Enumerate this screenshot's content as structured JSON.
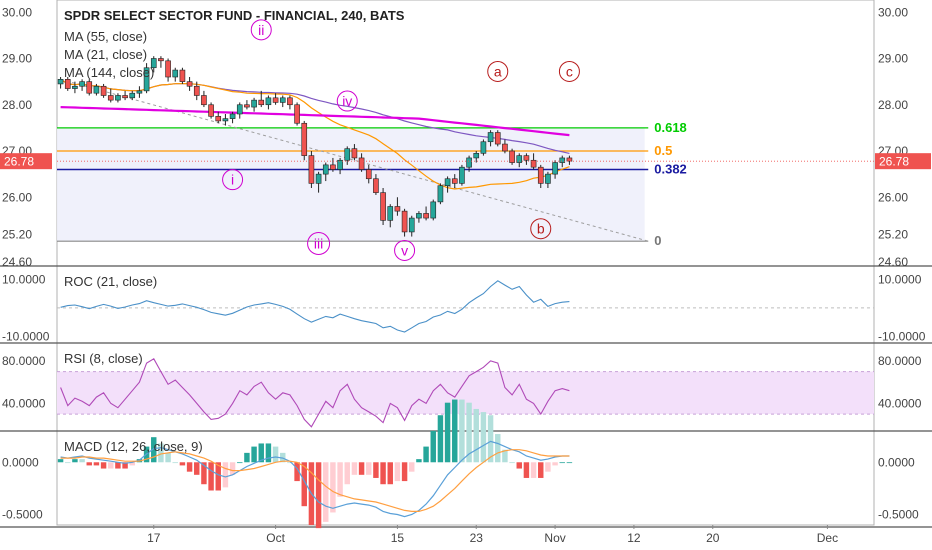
{
  "chart_data": [
    {
      "type": "candlestick",
      "title": "SPDR SELECT SECTOR FUND - FINANCIAL, 240, BATS",
      "price_label": "26.78",
      "price": 26.78,
      "ylim": [
        24.6,
        30.2
      ],
      "y_ticks": [
        "30.00",
        "29.00",
        "28.00",
        "27.00",
        "26.00",
        "25.20",
        "24.60"
      ],
      "y_tick_values": [
        30.0,
        29.0,
        28.0,
        27.0,
        26.0,
        25.2,
        24.6
      ],
      "indicators": [
        "MA (55, close)",
        "MA (21, close)",
        "MA (144, close)"
      ],
      "fib_levels": [
        {
          "label": "0.618",
          "value": 27.5,
          "color": "#00cc00"
        },
        {
          "label": "0.5",
          "value": 27.0,
          "color": "#ff9800"
        },
        {
          "label": "0.382",
          "value": 26.6,
          "color": "#1a1aa0"
        },
        {
          "label": "0",
          "value": 25.05,
          "color": "#888888"
        }
      ],
      "wave_labels": [
        {
          "label": "i",
          "x": 24,
          "y": 26.38
        },
        {
          "label": "ii",
          "x": 28,
          "y": 29.62
        },
        {
          "label": "iii",
          "x": 36,
          "y": 25.0
        },
        {
          "label": "iv",
          "x": 40,
          "y": 28.08
        },
        {
          "label": "v",
          "x": 48,
          "y": 24.85
        },
        {
          "label": "a",
          "x": 61,
          "y": 28.72
        },
        {
          "label": "b",
          "x": 67,
          "y": 25.32
        },
        {
          "label": "c",
          "x": 71,
          "y": 28.72
        }
      ],
      "candles": [
        [
          28.45,
          28.6,
          28.35,
          28.55
        ],
        [
          28.55,
          28.6,
          28.3,
          28.35
        ],
        [
          28.35,
          28.5,
          28.25,
          28.4
        ],
        [
          28.4,
          28.55,
          28.3,
          28.5
        ],
        [
          28.5,
          28.55,
          28.2,
          28.25
        ],
        [
          28.25,
          28.45,
          28.2,
          28.4
        ],
        [
          28.4,
          28.45,
          28.15,
          28.2
        ],
        [
          28.2,
          28.35,
          28.05,
          28.1
        ],
        [
          28.1,
          28.25,
          28.05,
          28.2
        ],
        [
          28.2,
          28.3,
          28.1,
          28.15
        ],
        [
          28.15,
          28.3,
          28.1,
          28.25
        ],
        [
          28.25,
          28.4,
          28.15,
          28.3
        ],
        [
          28.3,
          28.9,
          28.25,
          28.8
        ],
        [
          28.8,
          29.05,
          28.7,
          29.0
        ],
        [
          29.0,
          29.05,
          28.8,
          28.95
        ],
        [
          28.95,
          29.0,
          28.5,
          28.6
        ],
        [
          28.6,
          28.8,
          28.5,
          28.75
        ],
        [
          28.75,
          28.8,
          28.45,
          28.5
        ],
        [
          28.5,
          28.6,
          28.3,
          28.4
        ],
        [
          28.4,
          28.5,
          28.1,
          28.2
        ],
        [
          28.2,
          28.3,
          27.95,
          28.0
        ],
        [
          28.0,
          28.05,
          27.7,
          27.75
        ],
        [
          27.75,
          27.85,
          27.6,
          27.65
        ],
        [
          27.65,
          27.8,
          27.55,
          27.7
        ],
        [
          27.7,
          27.85,
          27.6,
          27.8
        ],
        [
          27.8,
          28.05,
          27.7,
          28.0
        ],
        [
          28.0,
          28.1,
          27.9,
          27.95
        ],
        [
          27.95,
          28.15,
          27.85,
          28.1
        ],
        [
          28.1,
          28.3,
          27.95,
          28.0
        ],
        [
          28.0,
          28.2,
          27.9,
          28.15
        ],
        [
          28.15,
          28.25,
          28.0,
          28.05
        ],
        [
          28.05,
          28.2,
          27.95,
          28.15
        ],
        [
          28.15,
          28.2,
          27.9,
          28.0
        ],
        [
          28.0,
          28.05,
          27.55,
          27.6
        ],
        [
          27.6,
          27.65,
          26.8,
          26.9
        ],
        [
          26.9,
          27.0,
          26.2,
          26.3
        ],
        [
          26.3,
          26.55,
          26.1,
          26.5
        ],
        [
          26.5,
          26.75,
          26.35,
          26.7
        ],
        [
          26.7,
          26.85,
          26.55,
          26.6
        ],
        [
          26.6,
          26.85,
          26.5,
          26.8
        ],
        [
          26.8,
          27.1,
          26.7,
          27.05
        ],
        [
          27.05,
          27.15,
          26.8,
          26.85
        ],
        [
          26.85,
          26.95,
          26.55,
          26.6
        ],
        [
          26.6,
          26.7,
          26.3,
          26.4
        ],
        [
          26.4,
          26.5,
          26.05,
          26.1
        ],
        [
          26.1,
          26.2,
          25.4,
          25.5
        ],
        [
          25.5,
          25.85,
          25.35,
          25.8
        ],
        [
          25.8,
          26.0,
          25.6,
          25.7
        ],
        [
          25.7,
          25.75,
          25.15,
          25.25
        ],
        [
          25.25,
          25.6,
          25.15,
          25.55
        ],
        [
          25.55,
          25.7,
          25.45,
          25.65
        ],
        [
          25.65,
          25.8,
          25.5,
          25.55
        ],
        [
          25.55,
          25.95,
          25.5,
          25.9
        ],
        [
          25.9,
          26.3,
          25.85,
          26.25
        ],
        [
          26.25,
          26.45,
          26.1,
          26.4
        ],
        [
          26.4,
          26.5,
          26.2,
          26.3
        ],
        [
          26.3,
          26.7,
          26.25,
          26.65
        ],
        [
          26.65,
          26.9,
          26.55,
          26.85
        ],
        [
          26.85,
          27.0,
          26.75,
          26.95
        ],
        [
          26.95,
          27.25,
          26.9,
          27.2
        ],
        [
          27.2,
          27.45,
          27.1,
          27.4
        ],
        [
          27.4,
          27.45,
          27.1,
          27.15
        ],
        [
          27.15,
          27.25,
          26.95,
          27.0
        ],
        [
          27.0,
          27.05,
          26.7,
          26.75
        ],
        [
          26.75,
          26.95,
          26.65,
          26.9
        ],
        [
          26.9,
          26.95,
          26.7,
          26.8
        ],
        [
          26.8,
          26.95,
          26.6,
          26.65
        ],
        [
          26.65,
          26.7,
          26.2,
          26.3
        ],
        [
          26.3,
          26.55,
          26.2,
          26.5
        ],
        [
          26.5,
          26.8,
          26.4,
          26.75
        ],
        [
          26.75,
          26.9,
          26.65,
          26.85
        ],
        [
          26.85,
          26.9,
          26.7,
          26.78
        ]
      ],
      "x_ticks": [
        {
          "label": "17",
          "index": 13
        },
        {
          "label": "Oct",
          "index": 30
        },
        {
          "label": "15",
          "index": 47
        },
        {
          "label": "23",
          "index": 58
        },
        {
          "label": "Nov",
          "index": 69
        },
        {
          "label": "12",
          "index": 80
        },
        {
          "label": "20",
          "index": 91
        },
        {
          "label": "Dec",
          "index": 107
        }
      ],
      "x_count": 114
    },
    {
      "type": "line",
      "title": "ROC (21, close)",
      "y_ticks": [
        "10.0000",
        "-10.0000"
      ],
      "y_tick_values": [
        10.0,
        -10.0
      ],
      "ylim": [
        -12,
        14
      ],
      "baseline": 0,
      "values": [
        0.2,
        0.8,
        1.0,
        0.4,
        -0.3,
        0.5,
        1.2,
        0.6,
        -0.2,
        0.3,
        1.0,
        1.5,
        2.5,
        1.8,
        1.2,
        0.6,
        0.9,
        1.4,
        0.8,
        0.2,
        -0.6,
        -1.6,
        -2.1,
        -2.6,
        -1.9,
        -0.8,
        0.3,
        1.0,
        1.4,
        1.8,
        1.2,
        0.5,
        -0.5,
        -2.2,
        -3.8,
        -5.0,
        -4.0,
        -3.0,
        -3.5,
        -2.2,
        -3.0,
        -3.8,
        -4.5,
        -5.0,
        -5.5,
        -7.0,
        -6.5,
        -7.8,
        -8.5,
        -7.0,
        -5.5,
        -4.8,
        -3.2,
        -2.5,
        -1.2,
        -2.0,
        -0.5,
        1.8,
        3.5,
        5.0,
        7.5,
        9.5,
        8.0,
        6.5,
        7.5,
        4.5,
        2.0,
        3.0,
        0.5,
        1.5,
        2.0,
        2.2
      ]
    },
    {
      "type": "line",
      "title": "RSI (8, close)",
      "y_ticks": [
        "80.0000",
        "40.0000"
      ],
      "y_tick_values": [
        80,
        40
      ],
      "ylim": [
        15,
        95
      ],
      "band": [
        30,
        70
      ],
      "values": [
        55,
        38,
        45,
        42,
        38,
        46,
        50,
        40,
        36,
        44,
        52,
        60,
        78,
        82,
        70,
        58,
        62,
        55,
        48,
        40,
        32,
        25,
        26,
        30,
        40,
        52,
        48,
        56,
        60,
        50,
        44,
        50,
        48,
        38,
        25,
        18,
        30,
        42,
        36,
        52,
        58,
        44,
        36,
        32,
        28,
        22,
        40,
        36,
        24,
        38,
        44,
        40,
        52,
        58,
        50,
        46,
        56,
        66,
        70,
        74,
        80,
        78,
        55,
        48,
        58,
        44,
        40,
        30,
        42,
        52,
        54,
        52
      ]
    },
    {
      "type": "bar+line",
      "title": "MACD (12, 26, close, 9)",
      "y_ticks": [
        "0.0000",
        "-0.5000"
      ],
      "y_tick_values": [
        0.0,
        -0.5
      ],
      "ylim": [
        -0.6,
        0.28
      ],
      "macd": [
        0.05,
        0.04,
        0.05,
        0.06,
        0.04,
        0.03,
        0.02,
        0.01,
        0.0,
        -0.01,
        0.0,
        0.02,
        0.08,
        0.13,
        0.14,
        0.12,
        0.1,
        0.08,
        0.05,
        0.02,
        -0.03,
        -0.08,
        -0.12,
        -0.14,
        -0.12,
        -0.08,
        -0.04,
        -0.01,
        0.02,
        0.04,
        0.05,
        0.04,
        0.01,
        -0.06,
        -0.18,
        -0.3,
        -0.38,
        -0.42,
        -0.44,
        -0.42,
        -0.4,
        -0.39,
        -0.4,
        -0.41,
        -0.43,
        -0.47,
        -0.49,
        -0.5,
        -0.52,
        -0.5,
        -0.46,
        -0.4,
        -0.32,
        -0.22,
        -0.12,
        -0.05,
        0.02,
        0.08,
        0.12,
        0.16,
        0.2,
        0.18,
        0.15,
        0.12,
        0.1,
        0.06,
        0.04,
        0.02,
        0.03,
        0.05,
        0.06,
        0.06
      ],
      "signal": [
        0.04,
        0.04,
        0.04,
        0.05,
        0.05,
        0.04,
        0.04,
        0.03,
        0.02,
        0.01,
        0.01,
        0.01,
        0.03,
        0.05,
        0.08,
        0.09,
        0.1,
        0.09,
        0.08,
        0.06,
        0.04,
        0.01,
        -0.03,
        -0.06,
        -0.08,
        -0.08,
        -0.07,
        -0.06,
        -0.04,
        -0.02,
        0.0,
        0.01,
        0.01,
        0.0,
        -0.04,
        -0.1,
        -0.17,
        -0.23,
        -0.28,
        -0.31,
        -0.33,
        -0.35,
        -0.36,
        -0.37,
        -0.38,
        -0.4,
        -0.42,
        -0.44,
        -0.46,
        -0.47,
        -0.47,
        -0.45,
        -0.42,
        -0.37,
        -0.31,
        -0.25,
        -0.18,
        -0.11,
        -0.05,
        0.0,
        0.05,
        0.09,
        0.11,
        0.12,
        0.12,
        0.11,
        0.09,
        0.07,
        0.06,
        0.06,
        0.06,
        0.06
      ],
      "colors": {
        "pos_strong": "#26a69a",
        "pos_weak": "#b2dfdb",
        "neg_strong": "#ef5350",
        "neg_weak": "#ffcdd2",
        "macd": "#5aa0d8",
        "signal": "#ff9f40"
      }
    }
  ]
}
